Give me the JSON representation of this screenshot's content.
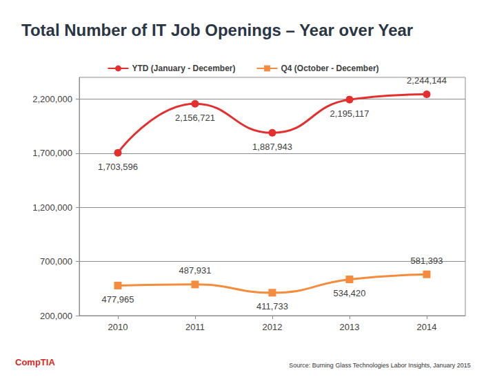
{
  "chart_data": {
    "type": "line",
    "title": "Total Number of IT Job Openings – Year over Year",
    "categories": [
      "2010",
      "2011",
      "2012",
      "2013",
      "2014"
    ],
    "series": [
      {
        "name": "YTD (January - December)",
        "color": "#e3302f",
        "marker": "circle",
        "line_style": "solid",
        "values": [
          1703596,
          2156721,
          1887943,
          2195117,
          2244144
        ],
        "value_labels": [
          "1,703,596",
          "2,156,721",
          "1,887,943",
          "2,195,117",
          "2,244,144"
        ]
      },
      {
        "name": "Q4 (October - December)",
        "color": "#f58b3c",
        "marker": "square",
        "line_style": "solid",
        "values": [
          477965,
          487931,
          411733,
          534420,
          581393
        ],
        "value_labels": [
          "477,965",
          "487,931",
          "411,733",
          "534,420",
          "581,393"
        ]
      }
    ],
    "ylim": [
      200000,
      2400000
    ],
    "yticks": [
      {
        "value": 200000,
        "label": "200,000"
      },
      {
        "value": 700000,
        "label": "700,000"
      },
      {
        "value": 1200000,
        "label": "1,200,000"
      },
      {
        "value": 1700000,
        "label": "1,700,000"
      },
      {
        "value": 2200000,
        "label": "2,200,000"
      }
    ],
    "grid": true,
    "legend": "top",
    "data_labels": true,
    "annotations": [
      "CompTIA",
      "Source: Burning Glass Technologies Labor Insights, January 2015"
    ]
  }
}
